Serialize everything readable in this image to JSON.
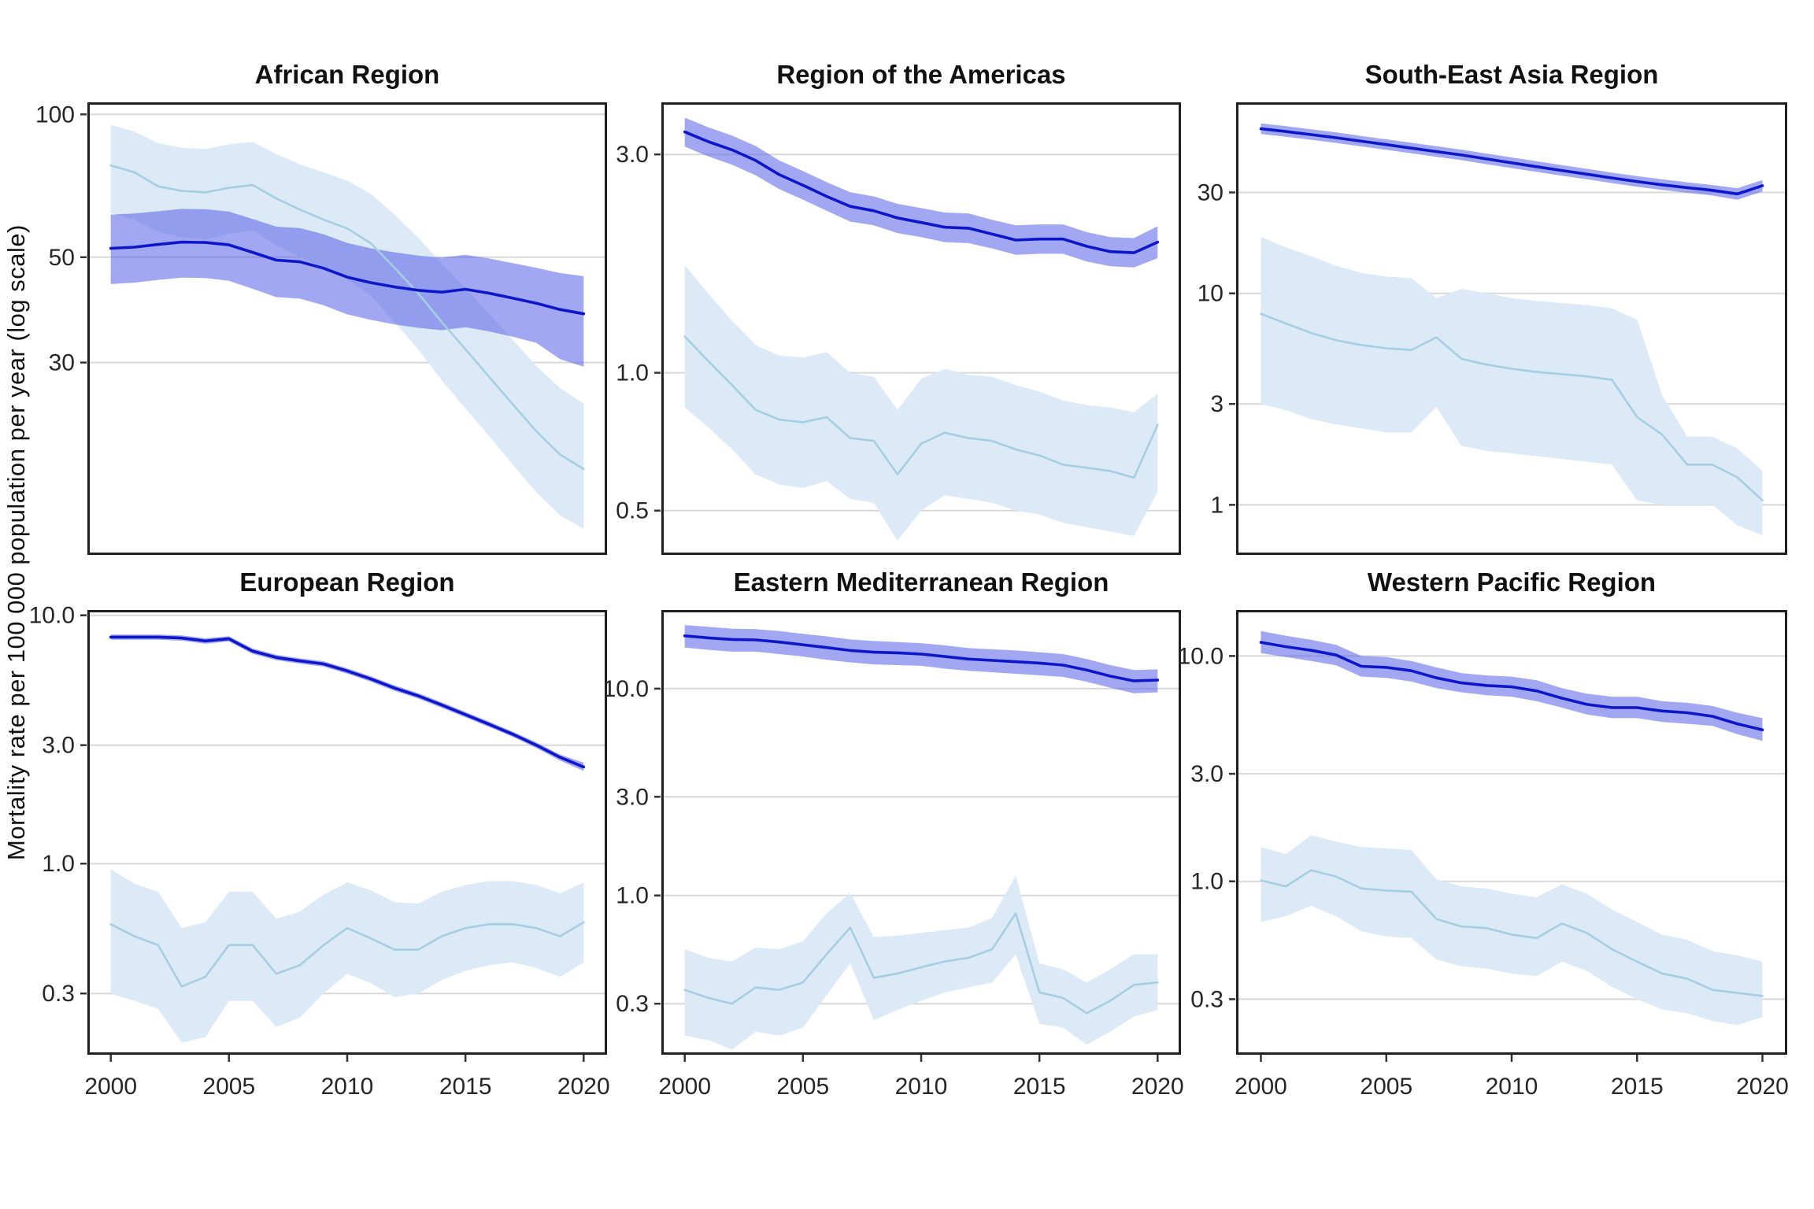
{
  "figure": {
    "y_axis_label": "Mortality rate per 100 000 population per year (log scale)",
    "x_axis": {
      "tick_years": [
        2000,
        2005,
        2010,
        2015,
        2020
      ],
      "tick_labels": [
        "2000",
        "2005",
        "2010",
        "2015",
        "2020"
      ]
    },
    "colors": {
      "dark_line": "#0d17c9",
      "dark_band": "rgba(90,98,230,0.56)",
      "light_line": "#a6cee3",
      "light_band": "#dbeaf6",
      "gridline": "#d8d8d8",
      "panel_border": "#202020",
      "tick_text": "#262626"
    }
  },
  "chart_data": [
    {
      "type": "line",
      "title": "African Region",
      "ylim": [
        11.8,
        106
      ],
      "yticks": [
        100,
        50,
        30
      ],
      "ytick_labels": [
        "100",
        "50",
        "30"
      ],
      "x": [
        2000,
        2001,
        2002,
        2003,
        2004,
        2005,
        2006,
        2007,
        2008,
        2009,
        2010,
        2011,
        2012,
        2013,
        2014,
        2015,
        2016,
        2017,
        2018,
        2019,
        2020
      ],
      "series": [
        {
          "name": "dark_blue",
          "values": [
            52.2,
            52.5,
            53.2,
            53.8,
            53.7,
            53.1,
            51.2,
            49.3,
            48.9,
            47.4,
            45.4,
            44.2,
            43.3,
            42.6,
            42.2,
            42.8,
            42.0,
            41.0,
            40.0,
            38.8,
            38.0
          ],
          "lower": [
            43.9,
            44.2,
            44.8,
            45.3,
            45.2,
            44.6,
            42.9,
            41.2,
            40.9,
            39.6,
            37.9,
            36.9,
            36.1,
            35.5,
            35.1,
            35.6,
            34.9,
            34.0,
            33.0,
            30.5,
            29.4
          ],
          "upper": [
            61.5,
            61.8,
            62.5,
            63.2,
            63.1,
            62.4,
            60.2,
            58.0,
            57.6,
            55.9,
            53.6,
            52.2,
            51.2,
            50.4,
            49.9,
            50.6,
            49.7,
            48.6,
            47.5,
            46.3,
            45.6
          ]
        },
        {
          "name": "light_blue",
          "values": [
            78,
            75.5,
            70.5,
            69,
            68.5,
            70,
            71,
            66.5,
            63,
            60,
            57.5,
            53.5,
            47.5,
            42,
            36.5,
            32,
            28,
            24.5,
            21.5,
            19.2,
            17.9
          ],
          "lower": [
            62,
            60,
            56.5,
            55,
            54.5,
            56,
            57,
            53,
            50,
            47.5,
            45,
            41.5,
            36.5,
            32,
            27.5,
            24,
            21,
            18.3,
            16,
            14.3,
            13.4
          ],
          "upper": [
            95,
            92,
            87,
            85,
            84.5,
            86.5,
            87.5,
            82.5,
            78.5,
            75.5,
            72.5,
            68,
            61.5,
            55,
            48.5,
            43,
            38,
            33.5,
            29.5,
            26.5,
            24.6
          ]
        }
      ]
    },
    {
      "type": "line",
      "title": "Region of the Americas",
      "ylim": [
        0.4,
        3.9
      ],
      "yticks": [
        3.0,
        1.0,
        0.5
      ],
      "ytick_labels": [
        "3.0",
        "1.0",
        "0.5"
      ],
      "x": [
        2000,
        2001,
        2002,
        2003,
        2004,
        2005,
        2006,
        2007,
        2008,
        2009,
        2010,
        2011,
        2012,
        2013,
        2014,
        2015,
        2016,
        2017,
        2018,
        2019,
        2020
      ],
      "series": [
        {
          "name": "dark_blue",
          "values": [
            3.36,
            3.2,
            3.07,
            2.91,
            2.71,
            2.57,
            2.43,
            2.31,
            2.26,
            2.18,
            2.13,
            2.08,
            2.07,
            2.01,
            1.95,
            1.96,
            1.96,
            1.89,
            1.84,
            1.83,
            1.93
          ],
          "lower": [
            3.12,
            2.97,
            2.85,
            2.7,
            2.52,
            2.39,
            2.26,
            2.14,
            2.1,
            2.02,
            1.98,
            1.93,
            1.92,
            1.87,
            1.81,
            1.82,
            1.82,
            1.75,
            1.71,
            1.7,
            1.78
          ],
          "upper": [
            3.61,
            3.44,
            3.3,
            3.13,
            2.91,
            2.76,
            2.61,
            2.48,
            2.43,
            2.34,
            2.29,
            2.24,
            2.23,
            2.16,
            2.1,
            2.11,
            2.11,
            2.03,
            1.98,
            1.97,
            2.09
          ]
        },
        {
          "name": "light_blue",
          "values": [
            1.2,
            1.06,
            0.94,
            0.83,
            0.79,
            0.78,
            0.8,
            0.72,
            0.71,
            0.6,
            0.7,
            0.74,
            0.72,
            0.71,
            0.68,
            0.66,
            0.63,
            0.62,
            0.61,
            0.59,
            0.77
          ],
          "lower": [
            0.84,
            0.76,
            0.68,
            0.6,
            0.57,
            0.56,
            0.58,
            0.53,
            0.52,
            0.43,
            0.5,
            0.54,
            0.53,
            0.52,
            0.5,
            0.49,
            0.47,
            0.46,
            0.45,
            0.44,
            0.55
          ],
          "upper": [
            1.72,
            1.49,
            1.3,
            1.15,
            1.09,
            1.08,
            1.11,
            1.0,
            0.98,
            0.83,
            0.97,
            1.02,
            0.99,
            0.98,
            0.94,
            0.91,
            0.87,
            0.85,
            0.84,
            0.82,
            0.9
          ]
        }
      ]
    },
    {
      "type": "line",
      "title": "South-East Asia Region",
      "ylim": [
        0.58,
        80
      ],
      "yticks": [
        30,
        10,
        3,
        1
      ],
      "ytick_labels": [
        "30",
        "10",
        "3",
        "1"
      ],
      "x": [
        2000,
        2001,
        2002,
        2003,
        2004,
        2005,
        2006,
        2007,
        2008,
        2009,
        2010,
        2011,
        2012,
        2013,
        2014,
        2015,
        2016,
        2017,
        2018,
        2019,
        2020
      ],
      "series": [
        {
          "name": "dark_blue",
          "values": [
            60,
            58.2,
            56.3,
            54.4,
            52.4,
            50.5,
            48.6,
            46.8,
            45.1,
            43.2,
            41.4,
            39.7,
            38.1,
            36.6,
            35.1,
            33.8,
            32.6,
            31.6,
            30.7,
            29.5,
            32.3
          ],
          "lower": [
            56.7,
            55.0,
            53.2,
            51.4,
            49.5,
            47.7,
            45.9,
            44.2,
            42.6,
            40.8,
            39.1,
            37.5,
            36.0,
            34.6,
            33.2,
            31.9,
            30.8,
            29.9,
            29.0,
            27.7,
            30.3
          ],
          "upper": [
            63.6,
            61.7,
            59.7,
            57.7,
            55.5,
            53.5,
            51.5,
            49.6,
            47.8,
            45.8,
            43.9,
            42.1,
            40.4,
            38.8,
            37.2,
            35.8,
            34.6,
            33.5,
            32.5,
            31.4,
            34.3
          ]
        },
        {
          "name": "light_blue",
          "values": [
            8.0,
            7.2,
            6.5,
            6.0,
            5.7,
            5.5,
            5.4,
            6.2,
            4.9,
            4.6,
            4.4,
            4.25,
            4.15,
            4.05,
            3.9,
            2.6,
            2.15,
            1.55,
            1.55,
            1.35,
            1.05
          ],
          "lower": [
            3.0,
            2.8,
            2.55,
            2.4,
            2.3,
            2.2,
            2.2,
            2.9,
            1.9,
            1.8,
            1.75,
            1.7,
            1.65,
            1.6,
            1.55,
            1.05,
            1.0,
            1.0,
            1.0,
            0.8,
            0.72
          ],
          "upper": [
            18.5,
            16.5,
            15.0,
            13.5,
            12.5,
            12.0,
            11.8,
            9.5,
            10.5,
            10.0,
            9.5,
            9.2,
            9.0,
            8.8,
            8.5,
            7.5,
            3.3,
            2.1,
            2.1,
            1.85,
            1.45
          ]
        }
      ]
    },
    {
      "type": "line",
      "title": "European Region",
      "ylim": [
        0.17,
        10.5
      ],
      "yticks": [
        10.0,
        3.0,
        1.0,
        0.3
      ],
      "ytick_labels": [
        "10.0",
        "3.0",
        "1.0",
        "0.3"
      ],
      "x": [
        2000,
        2001,
        2002,
        2003,
        2004,
        2005,
        2006,
        2007,
        2008,
        2009,
        2010,
        2011,
        2012,
        2013,
        2014,
        2015,
        2016,
        2017,
        2018,
        2019,
        2020
      ],
      "series": [
        {
          "name": "dark_blue",
          "values": [
            8.17,
            8.17,
            8.17,
            8.1,
            7.88,
            8.04,
            7.17,
            6.76,
            6.55,
            6.37,
            5.97,
            5.54,
            5.09,
            4.74,
            4.35,
            3.98,
            3.64,
            3.32,
            3.0,
            2.68,
            2.45
          ],
          "lower": [
            7.97,
            7.97,
            7.97,
            7.9,
            7.68,
            7.84,
            6.99,
            6.59,
            6.39,
            6.21,
            5.82,
            5.4,
            4.96,
            4.62,
            4.24,
            3.88,
            3.55,
            3.24,
            2.92,
            2.6,
            2.36
          ],
          "upper": [
            8.37,
            8.37,
            8.37,
            8.3,
            8.08,
            8.24,
            7.35,
            6.93,
            6.71,
            6.53,
            6.12,
            5.68,
            5.22,
            4.86,
            4.46,
            4.08,
            3.73,
            3.4,
            3.08,
            2.75,
            2.55
          ]
        },
        {
          "name": "light_blue",
          "values": [
            0.57,
            0.51,
            0.47,
            0.32,
            0.35,
            0.47,
            0.47,
            0.36,
            0.39,
            0.47,
            0.55,
            0.5,
            0.45,
            0.45,
            0.51,
            0.55,
            0.57,
            0.57,
            0.55,
            0.51,
            0.58
          ],
          "lower": [
            0.3,
            0.28,
            0.26,
            0.19,
            0.2,
            0.28,
            0.28,
            0.22,
            0.24,
            0.3,
            0.36,
            0.33,
            0.29,
            0.3,
            0.34,
            0.37,
            0.39,
            0.4,
            0.38,
            0.35,
            0.4
          ],
          "upper": [
            0.95,
            0.83,
            0.77,
            0.55,
            0.58,
            0.77,
            0.77,
            0.6,
            0.64,
            0.75,
            0.84,
            0.78,
            0.7,
            0.69,
            0.77,
            0.82,
            0.85,
            0.85,
            0.82,
            0.76,
            0.84
          ]
        }
      ]
    },
    {
      "type": "line",
      "title": "Eastern Mediterranean Region",
      "ylim": [
        0.17,
        24
      ],
      "yticks": [
        10.0,
        3.0,
        1.0,
        0.3
      ],
      "ytick_labels": [
        "10.0",
        "3.0",
        "1.0",
        "0.3"
      ],
      "x": [
        2000,
        2001,
        2002,
        2003,
        2004,
        2005,
        2006,
        2007,
        2008,
        2009,
        2010,
        2011,
        2012,
        2013,
        2014,
        2015,
        2016,
        2017,
        2018,
        2019,
        2020
      ],
      "series": [
        {
          "name": "dark_blue",
          "values": [
            18.0,
            17.6,
            17.3,
            17.2,
            16.8,
            16.3,
            15.8,
            15.3,
            15.0,
            14.9,
            14.7,
            14.3,
            13.9,
            13.7,
            13.5,
            13.3,
            13.0,
            12.3,
            11.5,
            10.9,
            11.0
          ],
          "lower": [
            15.8,
            15.4,
            15.1,
            15.1,
            14.7,
            14.3,
            13.8,
            13.4,
            13.1,
            13.0,
            12.9,
            12.5,
            12.2,
            12.0,
            11.8,
            11.6,
            11.4,
            10.8,
            10.1,
            9.5,
            9.6
          ],
          "upper": [
            20.3,
            19.9,
            19.5,
            19.4,
            19.0,
            18.4,
            17.9,
            17.3,
            17.0,
            16.8,
            16.6,
            16.2,
            15.7,
            15.5,
            15.3,
            15.0,
            14.7,
            13.9,
            13.0,
            12.3,
            12.4
          ]
        },
        {
          "name": "light_blue",
          "values": [
            0.35,
            0.32,
            0.3,
            0.36,
            0.35,
            0.38,
            0.52,
            0.7,
            0.4,
            0.42,
            0.45,
            0.48,
            0.5,
            0.55,
            0.82,
            0.34,
            0.32,
            0.27,
            0.31,
            0.37,
            0.38
          ],
          "lower": [
            0.21,
            0.2,
            0.18,
            0.22,
            0.21,
            0.23,
            0.33,
            0.47,
            0.25,
            0.28,
            0.31,
            0.34,
            0.36,
            0.38,
            0.52,
            0.24,
            0.23,
            0.19,
            0.22,
            0.26,
            0.28
          ],
          "upper": [
            0.55,
            0.5,
            0.48,
            0.56,
            0.55,
            0.6,
            0.82,
            1.03,
            0.63,
            0.64,
            0.66,
            0.68,
            0.7,
            0.78,
            1.25,
            0.47,
            0.44,
            0.38,
            0.44,
            0.52,
            0.52
          ]
        }
      ]
    },
    {
      "type": "line",
      "title": "Western Pacific Region",
      "ylim": [
        0.17,
        16
      ],
      "yticks": [
        10.0,
        3.0,
        1.0,
        0.3
      ],
      "ytick_labels": [
        "10.0",
        "3.0",
        "1.0",
        "0.3"
      ],
      "x": [
        2000,
        2001,
        2002,
        2003,
        2004,
        2005,
        2006,
        2007,
        2008,
        2009,
        2010,
        2011,
        2012,
        2013,
        2014,
        2015,
        2016,
        2017,
        2018,
        2019,
        2020
      ],
      "series": [
        {
          "name": "dark_blue",
          "values": [
            11.5,
            11.0,
            10.6,
            10.1,
            9.0,
            8.9,
            8.6,
            8.0,
            7.6,
            7.4,
            7.3,
            7.0,
            6.5,
            6.1,
            5.9,
            5.9,
            5.7,
            5.6,
            5.4,
            5.0,
            4.7
          ],
          "lower": [
            10.3,
            9.9,
            9.5,
            9.1,
            8.1,
            8.0,
            7.7,
            7.2,
            6.9,
            6.7,
            6.6,
            6.3,
            5.9,
            5.5,
            5.3,
            5.3,
            5.1,
            5.0,
            4.9,
            4.5,
            4.2
          ],
          "upper": [
            12.9,
            12.3,
            11.8,
            11.2,
            10.0,
            9.9,
            9.5,
            8.9,
            8.4,
            8.2,
            8.1,
            7.8,
            7.2,
            6.8,
            6.6,
            6.6,
            6.3,
            6.2,
            6.0,
            5.6,
            5.3
          ]
        },
        {
          "name": "light_blue",
          "values": [
            1.01,
            0.95,
            1.12,
            1.05,
            0.93,
            0.91,
            0.9,
            0.68,
            0.63,
            0.62,
            0.58,
            0.56,
            0.65,
            0.59,
            0.5,
            0.44,
            0.39,
            0.37,
            0.33,
            0.32,
            0.31
          ],
          "lower": [
            0.66,
            0.7,
            0.78,
            0.7,
            0.6,
            0.57,
            0.56,
            0.45,
            0.42,
            0.41,
            0.39,
            0.38,
            0.44,
            0.4,
            0.34,
            0.3,
            0.27,
            0.26,
            0.24,
            0.23,
            0.25
          ],
          "upper": [
            1.42,
            1.32,
            1.6,
            1.5,
            1.42,
            1.4,
            1.38,
            1.02,
            0.95,
            0.93,
            0.88,
            0.85,
            0.97,
            0.88,
            0.75,
            0.66,
            0.58,
            0.55,
            0.49,
            0.47,
            0.44
          ]
        }
      ]
    }
  ]
}
